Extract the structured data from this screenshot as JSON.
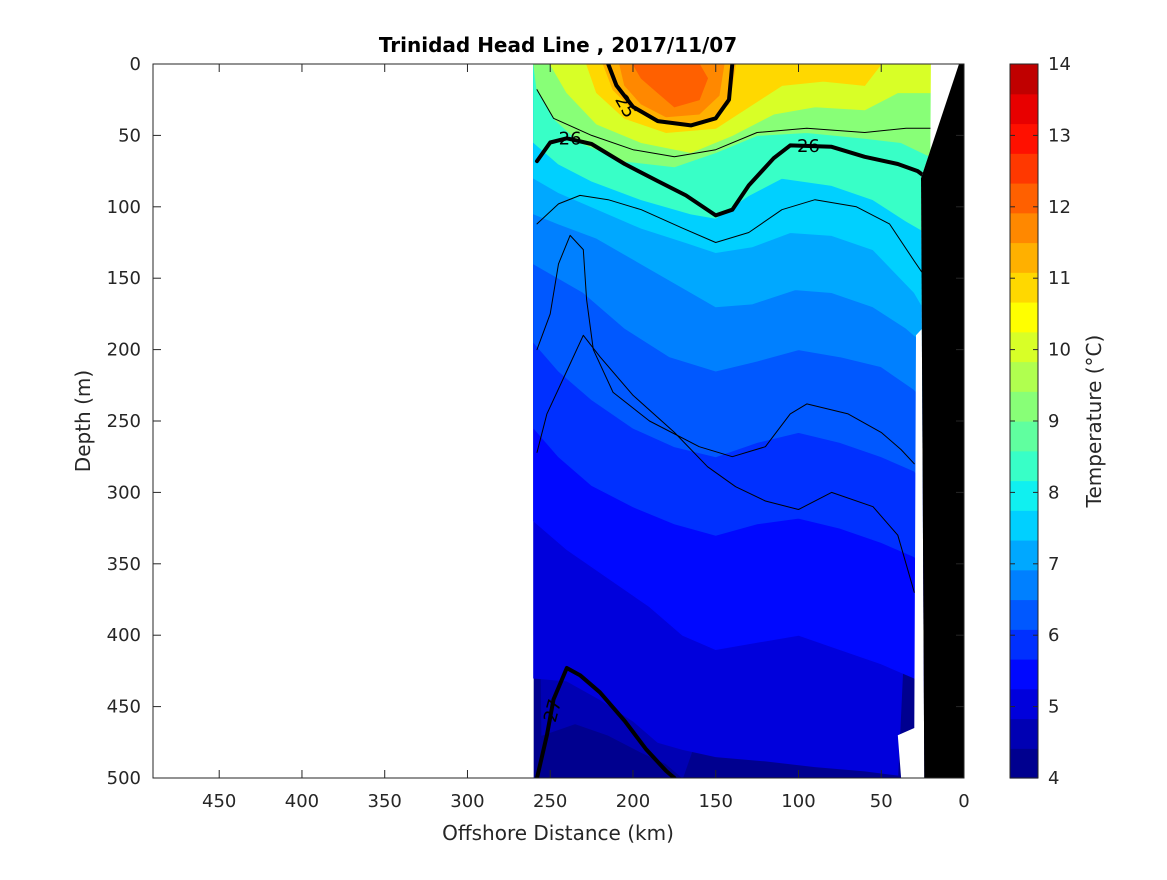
{
  "chart_data": {
    "type": "heatmap",
    "title": "Trinidad Head Line , 2017/11/07",
    "xlabel": "Offshore Distance (km)",
    "ylabel": "Depth (m)",
    "xlim": [
      490,
      0
    ],
    "ylim": [
      500,
      0
    ],
    "x_reversed": true,
    "y_reversed": true,
    "xticks": [
      450,
      400,
      350,
      300,
      250,
      200,
      150,
      100,
      50,
      0
    ],
    "xtick_labels": [
      "450",
      "400",
      "350",
      "300",
      "250",
      "200",
      "150",
      "100",
      "50",
      "0"
    ],
    "yticks": [
      0,
      50,
      100,
      150,
      200,
      250,
      300,
      350,
      400,
      450,
      500
    ],
    "ytick_labels": [
      "0",
      "50",
      "100",
      "150",
      "200",
      "250",
      "300",
      "350",
      "400",
      "450",
      "500"
    ],
    "colorbar": {
      "label": "Temperature (°C)",
      "range": [
        4,
        14
      ],
      "ticks": [
        4,
        5,
        6,
        7,
        8,
        9,
        10,
        11,
        12,
        13,
        14
      ],
      "tick_labels": [
        "4",
        "5",
        "6",
        "7",
        "8",
        "9",
        "10",
        "11",
        "12",
        "13",
        "14"
      ],
      "step": 0.5,
      "colors": [
        "#00008f",
        "#0000b3",
        "#0000dc",
        "#0008ff",
        "#0030ff",
        "#0058ff",
        "#0080ff",
        "#00a8ff",
        "#00d0ff",
        "#10f0f0",
        "#38ffc7",
        "#60ff9f",
        "#88ff77",
        "#b0ff4f",
        "#d8ff27",
        "#ffff00",
        "#ffd800",
        "#ffb000",
        "#ff8800",
        "#ff6000",
        "#ff3800",
        "#ff1000",
        "#e80000",
        "#c00000"
      ]
    },
    "data_extent_km": [
      260,
      20
    ],
    "data_extent_m": [
      0,
      500
    ],
    "isotherm_boundaries": [
      {
        "t": 13.5,
        "pts": [
          [
            200,
            0
          ],
          [
            195,
            10
          ],
          [
            185,
            20
          ],
          [
            175,
            30
          ],
          [
            160,
            25
          ],
          [
            155,
            10
          ],
          [
            160,
            0
          ]
        ]
      },
      {
        "t": 13,
        "pts": [
          [
            208,
            0
          ],
          [
            205,
            15
          ],
          [
            195,
            28
          ],
          [
            180,
            37
          ],
          [
            160,
            35
          ],
          [
            148,
            22
          ],
          [
            145,
            0
          ]
        ]
      },
      {
        "t": 12.5,
        "pts": [
          [
            218,
            0
          ],
          [
            212,
            18
          ],
          [
            200,
            32
          ],
          [
            180,
            42
          ],
          [
            158,
            42
          ],
          [
            142,
            28
          ],
          [
            138,
            0
          ]
        ]
      },
      {
        "t": 12,
        "pts": [
          [
            228,
            0
          ],
          [
            222,
            20
          ],
          [
            205,
            38
          ],
          [
            180,
            48
          ],
          [
            150,
            45
          ],
          [
            130,
            30
          ],
          [
            110,
            15
          ],
          [
            85,
            12
          ],
          [
            60,
            15
          ],
          [
            50,
            0
          ]
        ]
      },
      {
        "t": 11,
        "pts": [
          [
            250,
            0
          ],
          [
            240,
            20
          ],
          [
            222,
            42
          ],
          [
            195,
            55
          ],
          [
            165,
            62
          ],
          [
            140,
            50
          ],
          [
            115,
            35
          ],
          [
            90,
            30
          ],
          [
            60,
            32
          ],
          [
            40,
            20
          ],
          [
            25,
            20
          ],
          [
            20,
            20
          ]
        ]
      },
      {
        "t": 10,
        "pts": [
          [
            258,
            18
          ],
          [
            248,
            38
          ],
          [
            232,
            55
          ],
          [
            205,
            68
          ],
          [
            175,
            72
          ],
          [
            150,
            62
          ],
          [
            125,
            50
          ],
          [
            95,
            48
          ],
          [
            60,
            52
          ],
          [
            38,
            55
          ],
          [
            20,
            65
          ]
        ]
      },
      {
        "t": 9,
        "pts": [
          [
            260,
            55
          ],
          [
            245,
            70
          ],
          [
            225,
            82
          ],
          [
            195,
            95
          ],
          [
            165,
            105
          ],
          [
            150,
            108
          ],
          [
            130,
            92
          ],
          [
            110,
            80
          ],
          [
            80,
            85
          ],
          [
            55,
            95
          ],
          [
            35,
            110
          ],
          [
            20,
            120
          ]
        ]
      },
      {
        "t": 8,
        "pts": [
          [
            260,
            80
          ],
          [
            245,
            90
          ],
          [
            225,
            100
          ],
          [
            195,
            115
          ],
          [
            168,
            125
          ],
          [
            150,
            132
          ],
          [
            128,
            128
          ],
          [
            105,
            118
          ],
          [
            80,
            120
          ],
          [
            55,
            130
          ],
          [
            30,
            160
          ],
          [
            20,
            180
          ]
        ]
      },
      {
        "t": 7.5,
        "pts": [
          [
            260,
            105
          ],
          [
            245,
            112
          ],
          [
            222,
            122
          ],
          [
            195,
            140
          ],
          [
            168,
            158
          ],
          [
            150,
            170
          ],
          [
            128,
            168
          ],
          [
            102,
            158
          ],
          [
            80,
            160
          ],
          [
            55,
            170
          ],
          [
            35,
            185
          ],
          [
            20,
            200
          ]
        ]
      },
      {
        "t": 7,
        "pts": [
          [
            260,
            140
          ],
          [
            248,
            148
          ],
          [
            230,
            160
          ],
          [
            205,
            185
          ],
          [
            178,
            205
          ],
          [
            150,
            215
          ],
          [
            125,
            208
          ],
          [
            100,
            200
          ],
          [
            75,
            205
          ],
          [
            50,
            212
          ],
          [
            30,
            228
          ],
          [
            20,
            240
          ]
        ]
      },
      {
        "t": 6.5,
        "pts": [
          [
            260,
            195
          ],
          [
            245,
            215
          ],
          [
            225,
            235
          ],
          [
            200,
            255
          ],
          [
            175,
            268
          ],
          [
            150,
            275
          ],
          [
            125,
            265
          ],
          [
            100,
            258
          ],
          [
            75,
            265
          ],
          [
            50,
            275
          ],
          [
            30,
            285
          ],
          [
            20,
            300
          ]
        ]
      },
      {
        "t": 6,
        "pts": [
          [
            260,
            255
          ],
          [
            245,
            275
          ],
          [
            225,
            295
          ],
          [
            200,
            310
          ],
          [
            175,
            322
          ],
          [
            150,
            330
          ],
          [
            125,
            322
          ],
          [
            100,
            318
          ],
          [
            75,
            325
          ],
          [
            50,
            335
          ],
          [
            30,
            345
          ],
          [
            20,
            355
          ]
        ]
      },
      {
        "t": 5.5,
        "pts": [
          [
            260,
            320
          ],
          [
            240,
            340
          ],
          [
            215,
            360
          ],
          [
            190,
            380
          ],
          [
            170,
            400
          ],
          [
            150,
            410
          ],
          [
            125,
            405
          ],
          [
            100,
            400
          ],
          [
            75,
            410
          ],
          [
            50,
            420
          ],
          [
            30,
            430
          ],
          [
            20,
            440
          ]
        ]
      },
      {
        "t": 5,
        "pts": [
          [
            260,
            430
          ],
          [
            240,
            432
          ],
          [
            220,
            445
          ],
          [
            200,
            460
          ],
          [
            185,
            475
          ],
          [
            170,
            480
          ],
          [
            150,
            485
          ],
          [
            120,
            488
          ],
          [
            90,
            492
          ],
          [
            60,
            495
          ],
          [
            40,
            498
          ]
        ]
      },
      {
        "t": 4.5,
        "pts": [
          [
            255,
            470
          ],
          [
            235,
            462
          ],
          [
            215,
            470
          ],
          [
            195,
            482
          ],
          [
            180,
            490
          ],
          [
            170,
            500
          ]
        ]
      }
    ],
    "density_contours": [
      {
        "label": "25",
        "bold": true,
        "pts": [
          [
            215,
            0
          ],
          [
            210,
            15
          ],
          [
            200,
            30
          ],
          [
            185,
            40
          ],
          [
            165,
            43
          ],
          [
            150,
            38
          ],
          [
            142,
            25
          ],
          [
            140,
            0
          ]
        ]
      },
      {
        "label": "26",
        "bold": true,
        "pts": [
          [
            258,
            68
          ],
          [
            250,
            55
          ],
          [
            240,
            52
          ],
          [
            225,
            56
          ],
          [
            205,
            70
          ],
          [
            185,
            82
          ],
          [
            168,
            92
          ],
          [
            150,
            106
          ],
          [
            140,
            102
          ],
          [
            130,
            85
          ],
          [
            115,
            66
          ],
          [
            105,
            57
          ],
          [
            80,
            58
          ],
          [
            60,
            65
          ],
          [
            40,
            70
          ],
          [
            28,
            75
          ],
          [
            20,
            82
          ]
        ]
      },
      {
        "label": "27",
        "bold": true,
        "pts": [
          [
            258,
            500
          ],
          [
            252,
            470
          ],
          [
            248,
            445
          ],
          [
            240,
            423
          ],
          [
            232,
            428
          ],
          [
            220,
            440
          ],
          [
            205,
            460
          ],
          [
            192,
            480
          ],
          [
            180,
            495
          ],
          [
            175,
            500
          ]
        ]
      },
      {
        "label": "",
        "bold": false,
        "pts": [
          [
            258,
            18
          ],
          [
            248,
            38
          ],
          [
            225,
            50
          ],
          [
            200,
            60
          ],
          [
            175,
            65
          ],
          [
            150,
            60
          ],
          [
            125,
            48
          ],
          [
            95,
            45
          ],
          [
            60,
            48
          ],
          [
            35,
            45
          ],
          [
            20,
            45
          ]
        ]
      },
      {
        "label": "",
        "bold": false,
        "pts": [
          [
            258,
            112
          ],
          [
            245,
            98
          ],
          [
            232,
            92
          ],
          [
            215,
            95
          ],
          [
            195,
            102
          ],
          [
            170,
            115
          ],
          [
            150,
            125
          ],
          [
            130,
            118
          ],
          [
            110,
            102
          ],
          [
            90,
            95
          ],
          [
            65,
            100
          ],
          [
            45,
            112
          ],
          [
            30,
            138
          ],
          [
            20,
            155
          ]
        ]
      },
      {
        "label": "",
        "bold": false,
        "pts": [
          [
            258,
            200
          ],
          [
            250,
            175
          ],
          [
            245,
            140
          ],
          [
            238,
            120
          ],
          [
            230,
            130
          ],
          [
            228,
            165
          ],
          [
            224,
            200
          ],
          [
            212,
            230
          ],
          [
            190,
            250
          ],
          [
            160,
            268
          ],
          [
            140,
            275
          ],
          [
            120,
            268
          ],
          [
            105,
            245
          ],
          [
            95,
            238
          ],
          [
            70,
            245
          ],
          [
            50,
            258
          ],
          [
            38,
            270
          ],
          [
            30,
            280
          ]
        ]
      },
      {
        "label": "",
        "bold": false,
        "pts": [
          [
            258,
            272
          ],
          [
            252,
            245
          ],
          [
            240,
            215
          ],
          [
            230,
            190
          ],
          [
            220,
            205
          ],
          [
            200,
            232
          ],
          [
            175,
            258
          ],
          [
            155,
            282
          ],
          [
            138,
            296
          ],
          [
            120,
            306
          ],
          [
            100,
            312
          ],
          [
            80,
            300
          ],
          [
            55,
            310
          ],
          [
            40,
            330
          ],
          [
            30,
            370
          ]
        ]
      }
    ],
    "contour_label_positions": [
      {
        "label": "25",
        "x": 205,
        "y": 30,
        "rotate": 60
      },
      {
        "label": "26",
        "x": 238,
        "y": 53,
        "rotate": 0
      },
      {
        "label": "26",
        "x": 94,
        "y": 58,
        "rotate": 0
      },
      {
        "label": "27",
        "x": 248,
        "y": 453,
        "rotate": -75
      }
    ],
    "seafloor_polygon": [
      [
        0,
        0
      ],
      [
        0,
        500
      ],
      [
        24,
        500
      ],
      [
        26,
        80
      ],
      [
        3,
        0
      ]
    ],
    "blank_region_polygon": [
      [
        0,
        0
      ],
      [
        3,
        0
      ],
      [
        26,
        80
      ],
      [
        24,
        500
      ],
      [
        38,
        500
      ],
      [
        40,
        470
      ],
      [
        30,
        465
      ],
      [
        29,
        190
      ],
      [
        21,
        180
      ],
      [
        20,
        0
      ]
    ]
  }
}
